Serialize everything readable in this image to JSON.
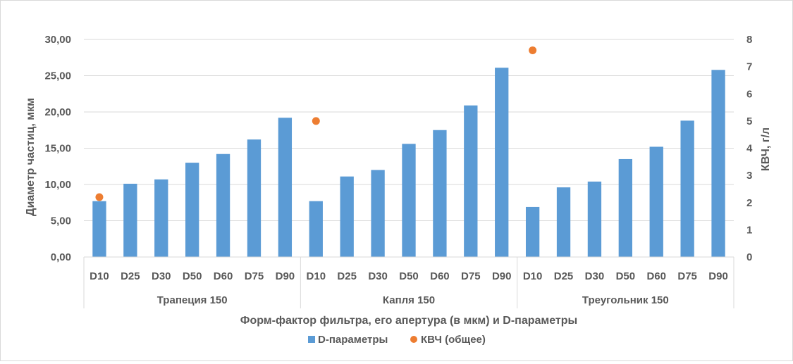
{
  "chart_data": {
    "type": "bar",
    "x_axis_title": "Форм-фактор фильтра, его апертура (в мкм) и D-параметры",
    "y_left_title": "Диаметр частиц, мкм",
    "y_right_title": "КВЧ, г/л",
    "y_left_lim": [
      0,
      30
    ],
    "y_left_ticks": [
      "0,00",
      "5,00",
      "10,00",
      "15,00",
      "20,00",
      "25,00",
      "30,00"
    ],
    "y_right_lim": [
      0,
      8
    ],
    "y_right_ticks": [
      "0",
      "1",
      "2",
      "3",
      "4",
      "5",
      "6",
      "7",
      "8"
    ],
    "groups": [
      {
        "name": "Трапеция 150",
        "categories": [
          "D10",
          "D25",
          "D30",
          "D50",
          "D60",
          "D75",
          "D90"
        ]
      },
      {
        "name": "Капля 150",
        "categories": [
          "D10",
          "D25",
          "D30",
          "D50",
          "D60",
          "D75",
          "D90"
        ]
      },
      {
        "name": "Треугольник 150",
        "categories": [
          "D10",
          "D25",
          "D30",
          "D50",
          "D60",
          "D75",
          "D90"
        ]
      }
    ],
    "series": [
      {
        "name": "D-параметры",
        "type": "bar",
        "axis": "left",
        "color": "#5b9bd5",
        "values": [
          7.7,
          10.1,
          10.7,
          13.0,
          14.2,
          16.2,
          19.2,
          7.7,
          11.1,
          12.0,
          15.6,
          17.5,
          20.9,
          26.1,
          6.9,
          9.6,
          10.4,
          13.5,
          15.2,
          18.8,
          25.8
        ]
      },
      {
        "name": "КВЧ (общее)",
        "type": "scatter",
        "axis": "right",
        "color": "#ed7d31",
        "points": [
          {
            "category_index": 0,
            "value": 2.2
          },
          {
            "category_index": 7,
            "value": 5.0
          },
          {
            "category_index": 14,
            "value": 7.6
          }
        ]
      }
    ],
    "gridlines": true,
    "legend_position": "bottom"
  }
}
